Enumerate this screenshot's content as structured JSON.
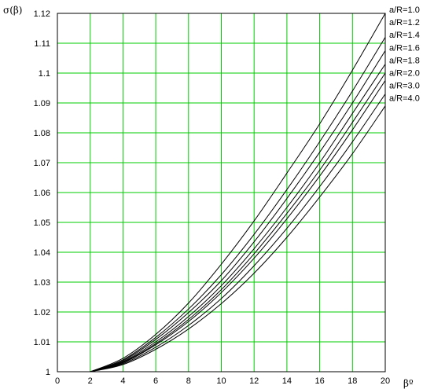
{
  "chart_data": {
    "type": "line",
    "ylabel": "σ(β)",
    "xlabel": "βº",
    "xlim": [
      0,
      20
    ],
    "ylim": [
      1,
      1.12
    ],
    "xticks": [
      "0",
      "2",
      "4",
      "6",
      "8",
      "10",
      "12",
      "14",
      "16",
      "18",
      "20"
    ],
    "yticks": [
      "1",
      "1.01",
      "1.02",
      "1.03",
      "1.04",
      "1.05",
      "1.06",
      "1.07",
      "1.08",
      "1.09",
      "1.1",
      "1.11",
      "1.12"
    ],
    "grid": true,
    "grid_color": "#00cc00",
    "line_color": "#000000",
    "x": [
      2,
      4,
      6,
      8,
      10,
      12,
      14,
      16,
      18,
      20
    ],
    "series": [
      {
        "name": "a/R=1.0",
        "values": [
          1.0,
          1.0045,
          1.0125,
          1.023,
          1.036,
          1.0505,
          1.0665,
          1.083,
          1.101,
          1.12
        ]
      },
      {
        "name": "a/R=1.2",
        "values": [
          1.0,
          1.004,
          1.0115,
          1.021,
          1.0325,
          1.046,
          1.061,
          1.077,
          1.094,
          1.112
        ]
      },
      {
        "name": "a/R=1.4",
        "values": [
          1.0,
          1.0037,
          1.0108,
          1.0198,
          1.0305,
          1.0435,
          1.058,
          1.0735,
          1.09,
          1.1075
        ]
      },
      {
        "name": "a/R=1.6",
        "values": [
          1.0,
          1.0034,
          1.01,
          1.0185,
          1.0288,
          1.0412,
          1.055,
          1.07,
          1.0865,
          1.103
        ]
      },
      {
        "name": "a/R=1.8",
        "values": [
          1.0,
          1.0032,
          1.0094,
          1.0175,
          1.0275,
          1.0395,
          1.053,
          1.0675,
          1.0835,
          1.1
        ]
      },
      {
        "name": "a/R=2.0",
        "values": [
          1.0,
          1.003,
          1.009,
          1.0168,
          1.0265,
          1.038,
          1.0512,
          1.0655,
          1.081,
          1.0975
        ]
      },
      {
        "name": "a/R=3.0",
        "values": [
          1.0,
          1.0027,
          1.0082,
          1.0155,
          1.0245,
          1.0355,
          1.048,
          1.062,
          1.077,
          1.093
        ]
      },
      {
        "name": "a/R=4.0",
        "values": [
          1.0,
          1.0024,
          1.0075,
          1.0143,
          1.0228,
          1.033,
          1.045,
          1.0585,
          1.073,
          1.089
        ]
      }
    ]
  }
}
